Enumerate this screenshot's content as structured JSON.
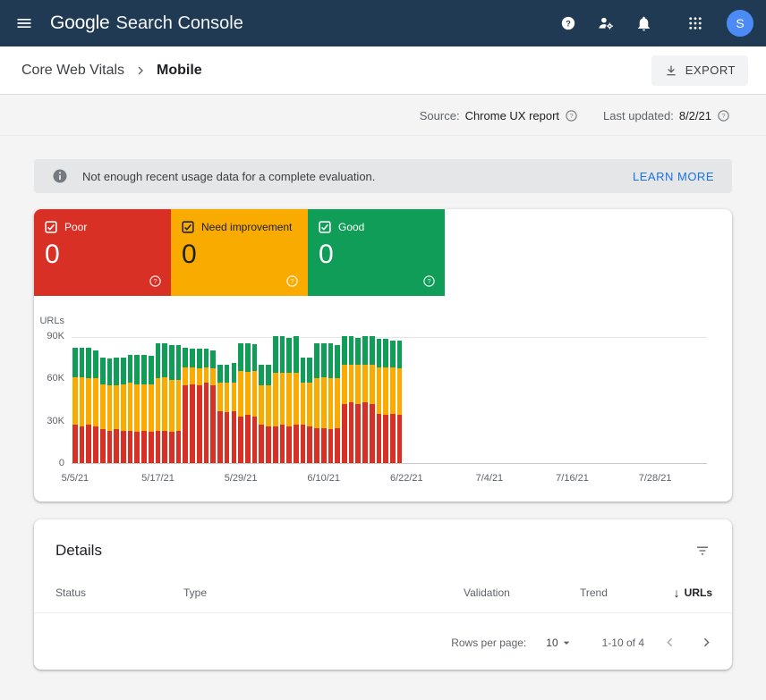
{
  "colors": {
    "app_bar": "#1f3a52",
    "accent": "#1a73e8",
    "avatar": "#4c8bf5"
  },
  "app_bar": {
    "logo_google": "Google",
    "logo_product": "Search Console",
    "avatar_letter": "S"
  },
  "breadcrumb": {
    "parent": "Core Web Vitals",
    "current": "Mobile"
  },
  "toolbar": {
    "export_label": "EXPORT"
  },
  "meta": {
    "source_label": "Source:",
    "source_value": "Chrome UX report",
    "updated_label": "Last updated:",
    "updated_value": "8/2/21"
  },
  "banner": {
    "message": "Not enough recent usage data for a complete evaluation.",
    "action": "LEARN MORE"
  },
  "tiles": [
    {
      "label": "Poor",
      "value": "0",
      "color": "#d93025",
      "text_color": "#ffffff",
      "icon_color": "#ffffff"
    },
    {
      "label": "Need improvement",
      "value": "0",
      "color": "#f9ab00",
      "text_color": "#202124",
      "icon_color": "#ffffff"
    },
    {
      "label": "Good",
      "value": "0",
      "color": "#0f9d58",
      "text_color": "#ffffff",
      "icon_color": "#ffffff"
    }
  ],
  "chart_data": {
    "type": "bar",
    "stacked": true,
    "title": "",
    "ylabel": "URLs",
    "xlabel": "",
    "ylim": [
      0,
      90000
    ],
    "yticks": [
      "0",
      "30K",
      "60K",
      "90K"
    ],
    "xticks": [
      "5/5/21",
      "5/17/21",
      "5/29/21",
      "6/10/21",
      "6/22/21",
      "7/4/21",
      "7/16/21",
      "7/28/21"
    ],
    "x_axis_days": 92,
    "grid": "top-line-and-baseline",
    "legend_position": "none",
    "colors": {
      "poor": "#d93025",
      "needs_improvement": "#f9ab00",
      "good": "#0f9d58"
    },
    "bars": [
      {
        "date": "5/5/21",
        "poor": 27000,
        "needs_improvement": 34000,
        "good": 21000
      },
      {
        "date": "5/6/21",
        "poor": 26000,
        "needs_improvement": 35000,
        "good": 21000
      },
      {
        "date": "5/7/21",
        "poor": 27000,
        "needs_improvement": 33000,
        "good": 22000
      },
      {
        "date": "5/8/21",
        "poor": 26000,
        "needs_improvement": 34000,
        "good": 20000
      },
      {
        "date": "5/9/21",
        "poor": 24000,
        "needs_improvement": 32000,
        "good": 19000
      },
      {
        "date": "5/10/21",
        "poor": 23000,
        "needs_improvement": 32000,
        "good": 19000
      },
      {
        "date": "5/11/21",
        "poor": 24000,
        "needs_improvement": 31000,
        "good": 20000
      },
      {
        "date": "5/12/21",
        "poor": 23000,
        "needs_improvement": 33000,
        "good": 19000
      },
      {
        "date": "5/13/21",
        "poor": 23000,
        "needs_improvement": 34000,
        "good": 20000
      },
      {
        "date": "5/14/21",
        "poor": 22000,
        "needs_improvement": 34000,
        "good": 21000
      },
      {
        "date": "5/15/21",
        "poor": 23000,
        "needs_improvement": 33000,
        "good": 21000
      },
      {
        "date": "5/16/21",
        "poor": 22000,
        "needs_improvement": 34000,
        "good": 20000
      },
      {
        "date": "5/17/21",
        "poor": 23000,
        "needs_improvement": 37000,
        "good": 25000
      },
      {
        "date": "5/18/21",
        "poor": 23000,
        "needs_improvement": 38000,
        "good": 24000
      },
      {
        "date": "5/19/21",
        "poor": 22000,
        "needs_improvement": 37000,
        "good": 25000
      },
      {
        "date": "5/20/21",
        "poor": 23000,
        "needs_improvement": 36000,
        "good": 25000
      },
      {
        "date": "5/21/21",
        "poor": 55000,
        "needs_improvement": 13000,
        "good": 14000
      },
      {
        "date": "5/22/21",
        "poor": 56000,
        "needs_improvement": 12000,
        "good": 13000
      },
      {
        "date": "5/23/21",
        "poor": 55000,
        "needs_improvement": 12000,
        "good": 14000
      },
      {
        "date": "5/24/21",
        "poor": 57000,
        "needs_improvement": 11000,
        "good": 13000
      },
      {
        "date": "5/25/21",
        "poor": 55000,
        "needs_improvement": 12000,
        "good": 13000
      },
      {
        "date": "5/26/21",
        "poor": 37000,
        "needs_improvement": 20000,
        "good": 13000
      },
      {
        "date": "5/27/21",
        "poor": 36000,
        "needs_improvement": 21000,
        "good": 13000
      },
      {
        "date": "5/28/21",
        "poor": 37000,
        "needs_improvement": 20000,
        "good": 14000
      },
      {
        "date": "5/29/21",
        "poor": 33000,
        "needs_improvement": 32000,
        "good": 20000
      },
      {
        "date": "5/30/21",
        "poor": 34000,
        "needs_improvement": 31000,
        "good": 20000
      },
      {
        "date": "5/31/21",
        "poor": 33000,
        "needs_improvement": 32000,
        "good": 19000
      },
      {
        "date": "6/1/21",
        "poor": 27000,
        "needs_improvement": 28000,
        "good": 15000
      },
      {
        "date": "6/2/21",
        "poor": 26000,
        "needs_improvement": 29000,
        "good": 15000
      },
      {
        "date": "6/3/21",
        "poor": 26000,
        "needs_improvement": 38000,
        "good": 26000
      },
      {
        "date": "6/4/21",
        "poor": 27000,
        "needs_improvement": 37000,
        "good": 26000
      },
      {
        "date": "6/5/21",
        "poor": 26000,
        "needs_improvement": 38000,
        "good": 25000
      },
      {
        "date": "6/6/21",
        "poor": 27000,
        "needs_improvement": 37000,
        "good": 26000
      },
      {
        "date": "6/7/21",
        "poor": 27000,
        "needs_improvement": 30000,
        "good": 18000
      },
      {
        "date": "6/8/21",
        "poor": 26000,
        "needs_improvement": 31000,
        "good": 18000
      },
      {
        "date": "6/9/21",
        "poor": 25000,
        "needs_improvement": 35000,
        "good": 25000
      },
      {
        "date": "6/10/21",
        "poor": 25000,
        "needs_improvement": 36000,
        "good": 24000
      },
      {
        "date": "6/11/21",
        "poor": 24000,
        "needs_improvement": 36000,
        "good": 25000
      },
      {
        "date": "6/12/21",
        "poor": 25000,
        "needs_improvement": 35000,
        "good": 24000
      },
      {
        "date": "6/13/21",
        "poor": 42000,
        "needs_improvement": 28000,
        "good": 20000
      },
      {
        "date": "6/14/21",
        "poor": 43000,
        "needs_improvement": 27000,
        "good": 20000
      },
      {
        "date": "6/15/21",
        "poor": 42000,
        "needs_improvement": 28000,
        "good": 19000
      },
      {
        "date": "6/16/21",
        "poor": 43000,
        "needs_improvement": 27000,
        "good": 20000
      },
      {
        "date": "6/17/21",
        "poor": 42000,
        "needs_improvement": 28000,
        "good": 20000
      },
      {
        "date": "6/18/21",
        "poor": 35000,
        "needs_improvement": 33000,
        "good": 20000
      },
      {
        "date": "6/19/21",
        "poor": 34000,
        "needs_improvement": 34000,
        "good": 20000
      },
      {
        "date": "6/20/21",
        "poor": 35000,
        "needs_improvement": 33000,
        "good": 19000
      },
      {
        "date": "6/21/21",
        "poor": 34000,
        "needs_improvement": 33000,
        "good": 20000
      }
    ]
  },
  "details": {
    "title": "Details",
    "columns": [
      "Status",
      "Type",
      "Validation",
      "Trend",
      "URLs"
    ],
    "sort_column": "URLs",
    "sort_direction": "desc",
    "rows": [],
    "pagination": {
      "rows_per_page_label": "Rows per page:",
      "rows_per_page": "10",
      "range": "1-10 of 4"
    }
  }
}
